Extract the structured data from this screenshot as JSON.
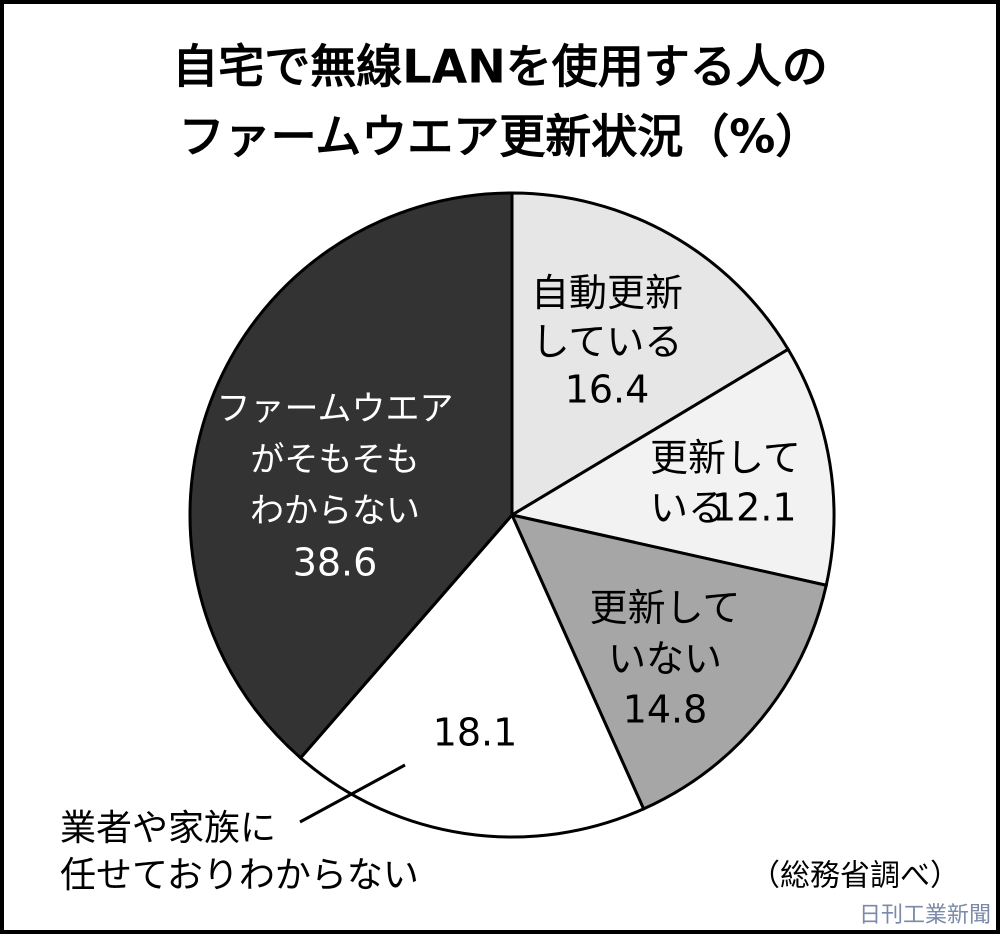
{
  "chart_data": {
    "type": "pie",
    "title": [
      "自宅で無線LANを使用する人の",
      "ファームウエア更新状況（%）"
    ],
    "categories": [
      "自動更新\nしている",
      "更新して\nいる",
      "更新して\nいない",
      "業者や家族に\n任せておりわからない",
      "ファームウエア\nがそもそも\nわからない"
    ],
    "values": [
      16.4,
      12.1,
      14.8,
      18.1,
      38.6
    ],
    "colors": [
      "#e6e6e6",
      "#f2f2f2",
      "#a6a6a6",
      "#ffffff",
      "#333333"
    ],
    "source": "（総務省調べ）",
    "watermark": "日刊工業新聞"
  }
}
